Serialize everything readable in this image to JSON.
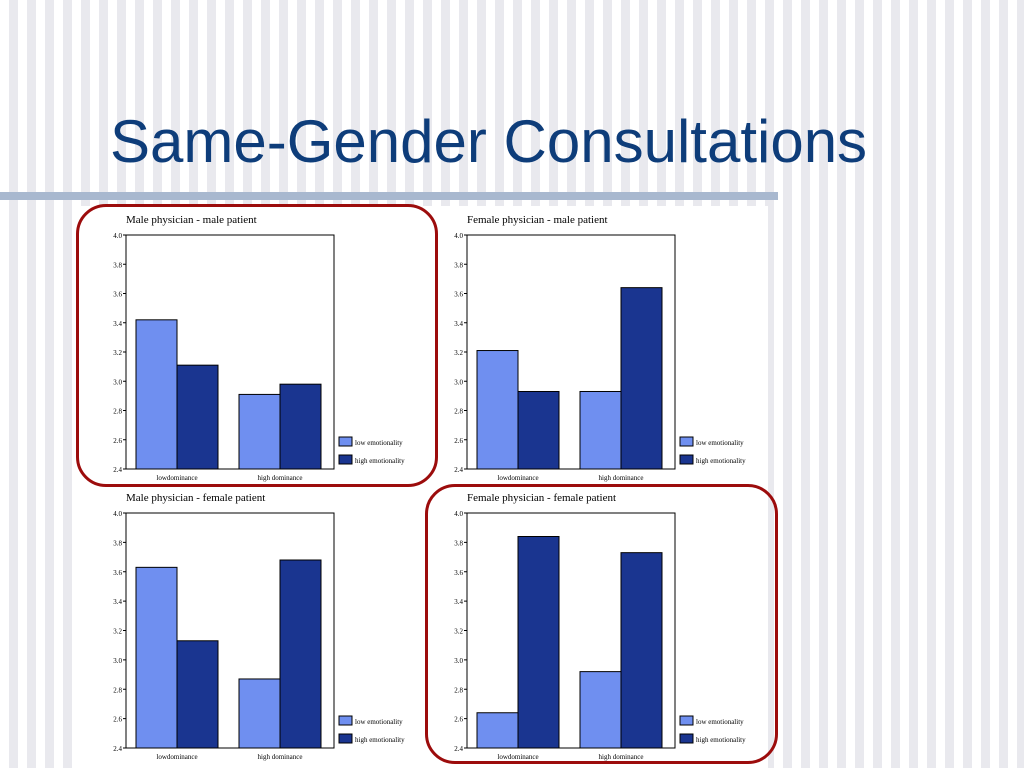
{
  "slide": {
    "title": "Same-Gender Consultations"
  },
  "colors": {
    "low_emotionality": "#6f8ff0",
    "high_emotionality": "#1a3590",
    "highlight": "#9c0c0c",
    "title": "#0e3d7a"
  },
  "chart_data": [
    {
      "type": "bar",
      "title": "Male physician - male patient",
      "categories": [
        "lowdominance",
        "high dominance"
      ],
      "series": [
        {
          "name": "low emotionality",
          "values": [
            3.42,
            2.91
          ]
        },
        {
          "name": "high emotionality",
          "values": [
            3.11,
            2.98
          ]
        }
      ],
      "ylim": [
        2.4,
        4.0
      ],
      "yticks": [
        "2.4",
        "2.6",
        "2.8",
        "3.0",
        "3.2",
        "3.4",
        "3.6",
        "3.8",
        "4.0"
      ],
      "legend": "right-bottom",
      "highlighted": true
    },
    {
      "type": "bar",
      "title": "Female physician - male patient",
      "categories": [
        "lowdominance",
        "high dominance"
      ],
      "series": [
        {
          "name": "low emotionality",
          "values": [
            3.21,
            2.93
          ]
        },
        {
          "name": "high emotionality",
          "values": [
            2.93,
            3.64
          ]
        }
      ],
      "ylim": [
        2.4,
        4.0
      ],
      "yticks": [
        "2.4",
        "2.6",
        "2.8",
        "3.0",
        "3.2",
        "3.4",
        "3.6",
        "3.8",
        "4.0"
      ],
      "legend": "right-bottom",
      "highlighted": false
    },
    {
      "type": "bar",
      "title": "Male physician - female patient",
      "categories": [
        "lowdominance",
        "high dominance"
      ],
      "series": [
        {
          "name": "low emotionality",
          "values": [
            3.63,
            2.87
          ]
        },
        {
          "name": "high emotionality",
          "values": [
            3.13,
            3.68
          ]
        }
      ],
      "ylim": [
        2.4,
        4.0
      ],
      "yticks": [
        "2.4",
        "2.6",
        "2.8",
        "3.0",
        "3.2",
        "3.4",
        "3.6",
        "3.8",
        "4.0"
      ],
      "legend": "right-bottom",
      "highlighted": false
    },
    {
      "type": "bar",
      "title": "Female physician - female patient",
      "categories": [
        "lowdominance",
        "high dominance"
      ],
      "series": [
        {
          "name": "low emotionality",
          "values": [
            2.64,
            2.92
          ]
        },
        {
          "name": "high emotionality",
          "values": [
            3.84,
            3.73
          ]
        }
      ],
      "ylim": [
        2.4,
        4.0
      ],
      "yticks": [
        "2.4",
        "2.6",
        "2.8",
        "3.0",
        "3.2",
        "3.4",
        "3.6",
        "3.8",
        "4.0"
      ],
      "legend": "right-bottom",
      "highlighted": true
    }
  ]
}
